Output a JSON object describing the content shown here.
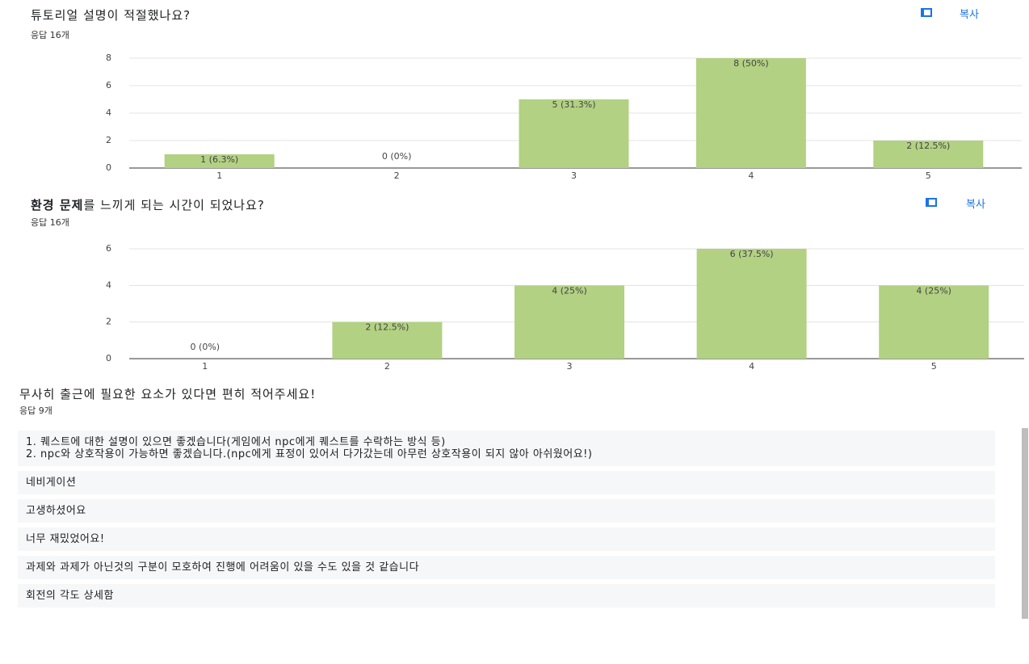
{
  "chart_data": [
    {
      "type": "bar",
      "title": "튜토리얼 설명이 적절했나요?",
      "subtitle": "응답 16개",
      "categories": [
        "1",
        "2",
        "3",
        "4",
        "5"
      ],
      "values": [
        1,
        0,
        5,
        8,
        2
      ],
      "value_labels": [
        "1 (6.3%)",
        "0 (0%)",
        "5 (31.3%)",
        "8 (50%)",
        "2 (12.5%)"
      ],
      "color": "#b2d182",
      "ylim": [
        0,
        8
      ],
      "yticks": [
        0,
        2,
        4,
        6,
        8
      ],
      "grid": true
    },
    {
      "type": "bar",
      "title_parts": [
        "환경 문제",
        "를 느끼게 되는 시간이 되었나요?"
      ],
      "subtitle": "응답 16개",
      "categories": [
        "1",
        "2",
        "3",
        "4",
        "5"
      ],
      "values": [
        0,
        2,
        4,
        6,
        4
      ],
      "value_labels": [
        "0 (0%)",
        "2 (12.5%)",
        "4 (25%)",
        "6 (37.5%)",
        "4 (25%)"
      ],
      "color": "#b2d182",
      "ylim": [
        0,
        6
      ],
      "yticks": [
        0,
        2,
        4,
        6
      ],
      "grid": true
    }
  ],
  "copy_buttons": [
    "복사",
    "복사"
  ],
  "text_question": {
    "title": "무사히 출근에 필요한 요소가 있다면 편히 적어주세요!",
    "subtitle": "응답 9개",
    "responses": [
      "1. 퀘스트에 대한 설명이 있으면 좋겠습니다(게임에서 npc에게 퀘스트를 수락하는 방식 등)\n2. npc와 상호작용이 가능하면 좋겠습니다.(npc에게 표정이 있어서 다가갔는데 아무런 상호작용이 되지 않아 아쉬웠어요!)",
      "네비게이션",
      "고생하셨어요",
      "너무 재밌었어요!",
      "과제와 과제가 아닌것의 구분이 모호하여 진행에 어려움이 있을 수도 있을 것 같습니다",
      "회전의 각도 상세함"
    ]
  }
}
